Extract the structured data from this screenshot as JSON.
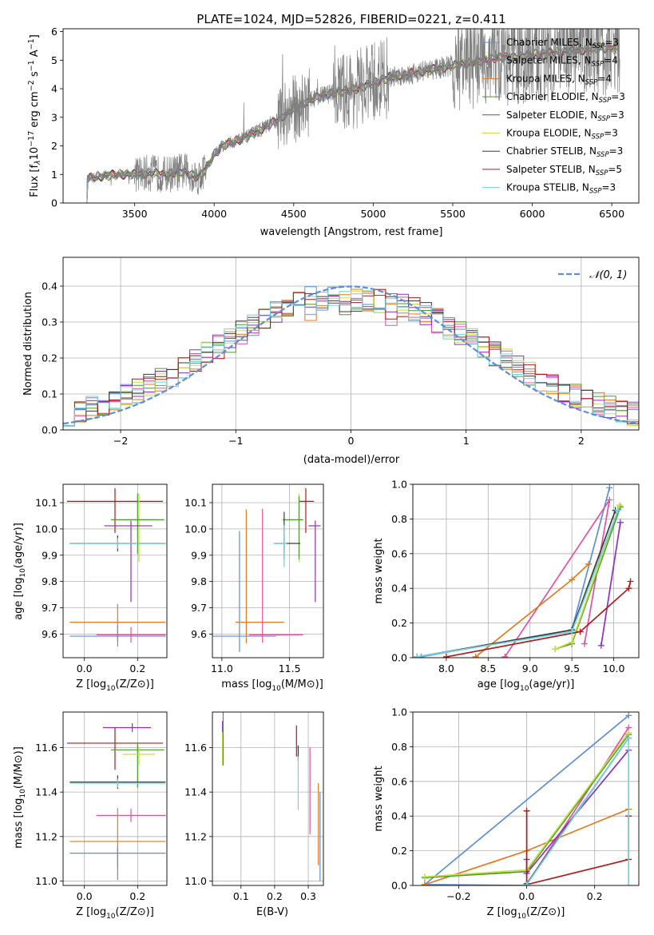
{
  "figure": {
    "title": "PLATE=1024, MJD=52826, FIBERID=0221, z=0.411"
  },
  "colors": {
    "chabrier_miles": "#5b8fd9",
    "salpeter_miles": "#e84fa0",
    "kroupa_miles": "#e37a1f",
    "chabrier_elodie": "#4a9a2a",
    "salpeter_elodie": "#8f2fbf",
    "kroupa_elodie": "#c7e03a",
    "chabrier_stelib": "#3a3a3a",
    "salpeter_stelib": "#b01a1a",
    "kroupa_stelib": "#6fd3e0",
    "data": "#808080",
    "normal": "#5b8fd9",
    "grid": "#b0b0b0"
  },
  "chart_data": [
    {
      "id": "spectrum",
      "type": "line",
      "xlabel": "wavelength [Angstrom, rest frame]",
      "ylabel": "Flux [f",
      "xlim": [
        3050,
        6670
      ],
      "ylim": [
        0,
        6.1
      ],
      "xticks": [
        "3500",
        "4000",
        "4500",
        "5000",
        "5500",
        "6000",
        "6500"
      ],
      "yticks": [
        "0",
        "1",
        "2",
        "3",
        "4",
        "5",
        "6"
      ],
      "grid": false,
      "legend_position": "right",
      "legend": [
        {
          "key": "chabrier_miles",
          "label": "Chabrier MILES, N",
          "n": "3"
        },
        {
          "key": "salpeter_miles",
          "label": "Salpeter MILES, N",
          "n": "4"
        },
        {
          "key": "kroupa_miles",
          "label": "Kroupa MILES, N",
          "n": "4"
        },
        {
          "key": "chabrier_elodie",
          "label": "Chabrier ELODIE, N",
          "n": "3"
        },
        {
          "key": "salpeter_elodie",
          "label": "Salpeter ELODIE, N",
          "n": "3"
        },
        {
          "key": "kroupa_elodie",
          "label": "Kroupa ELODIE, N",
          "n": "3"
        },
        {
          "key": "chabrier_stelib",
          "label": "Chabrier STELIB, N",
          "n": "3"
        },
        {
          "key": "salpeter_stelib",
          "label": "Salpeter STELIB, N",
          "n": "5"
        },
        {
          "key": "kroupa_stelib",
          "label": "Kroupa STELIB, N",
          "n": "3"
        }
      ],
      "continuum": {
        "x": [
          3200,
          3250,
          3300,
          3400,
          3500,
          3600,
          3700,
          3800,
          3900,
          3950,
          4000,
          4050,
          4100,
          4200,
          4300,
          4400,
          4500,
          4600,
          4700,
          4800,
          4900,
          5000,
          5100,
          5200,
          5300,
          5400,
          5500,
          5600,
          5700,
          5800,
          5900,
          6000,
          6100,
          6200,
          6300,
          6400,
          6500
        ],
        "y": [
          0.85,
          0.9,
          0.95,
          1.0,
          1.0,
          1.05,
          1.0,
          1.1,
          0.9,
          1.2,
          1.7,
          2.0,
          2.1,
          2.3,
          2.6,
          2.9,
          3.3,
          3.6,
          3.8,
          3.9,
          4.0,
          4.2,
          4.4,
          4.5,
          4.6,
          4.7,
          4.8,
          4.9,
          5.0,
          5.1,
          5.1,
          5.2,
          5.25,
          5.3,
          5.35,
          5.4,
          5.45
        ]
      },
      "data_noise_regions": [
        [
          3500,
          3950
        ],
        [
          4400,
          4600
        ],
        [
          4750,
          5100
        ],
        [
          5500,
          6550
        ]
      ]
    },
    {
      "id": "residuals",
      "type": "histogram",
      "xlabel": "(data-model)/error",
      "ylabel": "Normed distribution",
      "xlim": [
        -2.5,
        2.5
      ],
      "ylim": [
        0,
        0.48
      ],
      "xticks": [
        "−2",
        "−1",
        "0",
        "1",
        "2"
      ],
      "yticks": [
        "0.0",
        "0.1",
        "0.2",
        "0.3",
        "0.4"
      ],
      "grid": true,
      "legend_position": "top-right",
      "legend_label": "𝒩(0, 1)",
      "bin_width": 0.1,
      "bin_start": -2.5
    },
    {
      "id": "age_vs_Z",
      "type": "errorbar",
      "xlabel": "Z [log",
      "ylabel": "age  [log",
      "xlim": [
        -0.08,
        0.31
      ],
      "ylim": [
        9.51,
        10.17
      ],
      "xticks": [
        "0.0",
        "0.2"
      ],
      "yticks": [
        "9.6",
        "9.7",
        "9.8",
        "9.9",
        "10.0",
        "10.1"
      ],
      "grid": true,
      "points": [
        {
          "key": "salpeter_stelib",
          "x": 0.115,
          "xe": [
            0.18,
            0.18
          ],
          "y": 10.105,
          "ye": [
            0.12,
            0.05
          ]
        },
        {
          "key": "kroupa_elodie",
          "x": 0.205,
          "xe": [
            0.06,
            0.06
          ],
          "y": 10.035,
          "ye": [
            0.16,
            0.1
          ]
        },
        {
          "key": "chabrier_elodie",
          "x": 0.2,
          "xe": [
            0.1,
            0.1
          ],
          "y": 10.035,
          "ye": [
            0.13,
            0.1
          ]
        },
        {
          "key": "salpeter_elodie",
          "x": 0.175,
          "xe": [
            0.1,
            0.08
          ],
          "y": 10.012,
          "ye": [
            0.29,
            0.02
          ]
        },
        {
          "key": "chabrier_stelib",
          "x": 0.125,
          "xe": [
            0.18,
            0.18
          ],
          "y": 9.945,
          "ye": [
            0.03,
            0.03
          ]
        },
        {
          "key": "kroupa_stelib",
          "x": 0.125,
          "xe": [
            0.18,
            0.18
          ],
          "y": 9.945,
          "ye": [
            0.02,
            0.02
          ]
        },
        {
          "key": "kroupa_miles",
          "x": 0.125,
          "xe": [
            0.18,
            0.18
          ],
          "y": 9.645,
          "ye": [
            0.07,
            0.07
          ]
        },
        {
          "key": "chabrier_miles",
          "x": 0.125,
          "xe": [
            0.18,
            0.18
          ],
          "y": 9.592,
          "ye": [
            0.04,
            0.04
          ]
        },
        {
          "key": "salpeter_miles",
          "x": 0.175,
          "xe": [
            0.13,
            0.13
          ],
          "y": 9.597,
          "ye": [
            0.03,
            0.03
          ]
        }
      ]
    },
    {
      "id": "age_vs_mass",
      "type": "errorbar",
      "xlabel": "mass [log",
      "ylabel": "",
      "xlim": [
        10.93,
        11.75
      ],
      "ylim": [
        9.51,
        10.17
      ],
      "xticks": [
        "11.0",
        "11.5"
      ],
      "yticks": [
        "9.6",
        "9.7",
        "9.8",
        "9.9",
        "10.0",
        "10.1"
      ],
      "grid": true,
      "points": [
        {
          "key": "salpeter_stelib",
          "x": 11.62,
          "xe": [
            0.05,
            0.06
          ],
          "y": 10.105,
          "ye": [
            0.12,
            0.05
          ]
        },
        {
          "key": "kroupa_elodie",
          "x": 11.57,
          "xe": [
            0.03,
            0.03
          ],
          "y": 10.035,
          "ye": [
            0.16,
            0.1
          ]
        },
        {
          "key": "chabrier_elodie",
          "x": 11.57,
          "xe": [
            0.12,
            0.03
          ],
          "y": 10.035,
          "ye": [
            0.15,
            0.09
          ]
        },
        {
          "key": "salpeter_elodie",
          "x": 11.69,
          "xe": [
            0.05,
            0.04
          ],
          "y": 10.012,
          "ye": [
            0.29,
            0.02
          ]
        },
        {
          "key": "chabrier_stelib",
          "x": 11.46,
          "xe": [
            0.07,
            0.12
          ],
          "y": 9.945,
          "ye": [
            0.06,
            0.12
          ]
        },
        {
          "key": "kroupa_stelib",
          "x": 11.46,
          "xe": [
            0.08,
            0.02
          ],
          "y": 9.945,
          "ye": [
            0.09,
            0.07
          ]
        },
        {
          "key": "kroupa_miles",
          "x": 11.18,
          "xe": [
            0.08,
            0.28
          ],
          "y": 9.645,
          "ye": [
            0.08,
            0.43
          ]
        },
        {
          "key": "chabrier_miles",
          "x": 11.13,
          "xe": [
            0.23,
            0.27
          ],
          "y": 9.592,
          "ye": [
            0.06,
            0.4
          ]
        },
        {
          "key": "salpeter_miles",
          "x": 11.3,
          "xe": [
            0.1,
            0.3
          ],
          "y": 9.597,
          "ye": [
            0.03,
            0.48
          ]
        }
      ]
    },
    {
      "id": "mass_weight_vs_age",
      "type": "line",
      "xlabel": "age  [log",
      "ylabel": "mass weight",
      "xlim": [
        7.6,
        10.3
      ],
      "ylim": [
        0,
        1
      ],
      "xticks": [
        "8.0",
        "8.5",
        "9.0",
        "9.5",
        "10.0"
      ],
      "yticks": [
        "0.0",
        "0.2",
        "0.4",
        "0.6",
        "0.8",
        "1.0"
      ],
      "grid": true,
      "series": [
        {
          "key": "chabrier_miles",
          "x": [
            7.7,
            9.5,
            9.95
          ],
          "y": [
            0.005,
            0.16,
            0.98
          ]
        },
        {
          "key": "salpeter_miles",
          "x": [
            8.7,
            9.95,
            9.65
          ],
          "y": [
            0.005,
            0.91,
            0.08
          ]
        },
        {
          "key": "kroupa_miles",
          "x": [
            8.35,
            9.5,
            9.7
          ],
          "y": [
            0.005,
            0.45,
            0.54
          ]
        },
        {
          "key": "chabrier_elodie",
          "x": [
            9.3,
            9.5,
            10.08
          ],
          "y": [
            0.05,
            0.08,
            0.87
          ]
        },
        {
          "key": "salpeter_elodie",
          "x": [
            9.85,
            10.08
          ],
          "y": [
            0.07,
            0.78
          ]
        },
        {
          "key": "kroupa_elodie",
          "x": [
            9.3,
            9.5,
            10.07
          ],
          "y": [
            0.05,
            0.09,
            0.88
          ]
        },
        {
          "key": "chabrier_stelib",
          "x": [
            7.65,
            9.5,
            10.02
          ],
          "y": [
            0.005,
            0.16,
            0.85
          ]
        },
        {
          "key": "salpeter_stelib",
          "x": [
            8.0,
            9.6,
            10.18,
            10.2
          ],
          "y": [
            0.005,
            0.15,
            0.4,
            0.44
          ]
        },
        {
          "key": "kroupa_stelib",
          "x": [
            7.65,
            9.5,
            10.05
          ],
          "y": [
            0.005,
            0.15,
            0.85
          ]
        }
      ]
    },
    {
      "id": "mass_vs_Z",
      "type": "errorbar",
      "xlabel": "Z [log",
      "ylabel": "mass [log",
      "xlim": [
        -0.08,
        0.31
      ],
      "ylim": [
        10.98,
        11.76
      ],
      "xticks": [
        "0.0",
        "0.2"
      ],
      "yticks": [
        "11.0",
        "11.2",
        "11.4",
        "11.6"
      ],
      "grid": true,
      "points": [
        {
          "key": "salpeter_elodie",
          "x": 0.18,
          "xe": [
            0.11,
            0.07
          ],
          "y": 11.69,
          "ye": [
            0.02,
            0.02
          ]
        },
        {
          "key": "salpeter_stelib",
          "x": 0.115,
          "xe": [
            0.18,
            0.18
          ],
          "y": 11.62,
          "ye": [
            0.12,
            0.07
          ]
        },
        {
          "key": "chabrier_elodie",
          "x": 0.2,
          "xe": [
            0.1,
            0.1
          ],
          "y": 11.59,
          "ye": [
            0.17,
            0.03
          ]
        },
        {
          "key": "kroupa_elodie",
          "x": 0.205,
          "xe": [
            0.06,
            0.06
          ],
          "y": 11.57,
          "ye": [
            0.05,
            0.03
          ]
        },
        {
          "key": "chabrier_stelib",
          "x": 0.125,
          "xe": [
            0.18,
            0.18
          ],
          "y": 11.445,
          "ye": [
            0.03,
            0.03
          ]
        },
        {
          "key": "kroupa_stelib",
          "x": 0.125,
          "xe": [
            0.18,
            0.18
          ],
          "y": 11.44,
          "ye": [
            0.02,
            0.02
          ]
        },
        {
          "key": "salpeter_miles",
          "x": 0.175,
          "xe": [
            0.13,
            0.13
          ],
          "y": 11.295,
          "ye": [
            0.03,
            0.03
          ]
        },
        {
          "key": "kroupa_miles",
          "x": 0.125,
          "xe": [
            0.18,
            0.18
          ],
          "y": 11.178,
          "ye": [
            0.12,
            0.15
          ]
        },
        {
          "key": "chabrier_miles",
          "x": 0.125,
          "xe": [
            0.18,
            0.18
          ],
          "y": 11.125,
          "ye": [
            0.12,
            0.03
          ]
        }
      ]
    },
    {
      "id": "mass_vs_ebv",
      "type": "errorbar",
      "xlabel": "E(B-V)",
      "ylabel": "",
      "xlim": [
        0.015,
        0.345
      ],
      "ylim": [
        10.98,
        11.76
      ],
      "xticks": [
        "0.1",
        "0.2",
        "0.3"
      ],
      "yticks": [
        "11.0",
        "11.2",
        "11.4",
        "11.6"
      ],
      "grid": true,
      "points": [
        {
          "key": "salpeter_elodie",
          "x": 0.045,
          "xe": [
            0,
            0
          ],
          "y": 11.69,
          "ye": [
            0.03,
            0.03
          ]
        },
        {
          "key": "kroupa_elodie",
          "x": 0.045,
          "xe": [
            0,
            0
          ],
          "y": 11.57,
          "ye": [
            0.05,
            0.1
          ]
        },
        {
          "key": "chabrier_elodie",
          "x": 0.047,
          "xe": [
            0,
            0
          ],
          "y": 11.59,
          "ye": [
            0.07,
            0.17
          ]
        },
        {
          "key": "salpeter_stelib",
          "x": 0.265,
          "xe": [
            0,
            0
          ],
          "y": 11.63,
          "ye": [
            0.07,
            0.07
          ]
        },
        {
          "key": "chabrier_stelib",
          "x": 0.27,
          "xe": [
            0,
            0
          ],
          "y": 11.58,
          "ye": [
            0.04,
            0.03
          ]
        },
        {
          "key": "kroupa_stelib",
          "x": 0.27,
          "xe": [
            0,
            0
          ],
          "y": 11.44,
          "ye": [
            0.12,
            0.12
          ]
        },
        {
          "key": "salpeter_miles",
          "x": 0.305,
          "xe": [
            0,
            0
          ],
          "y": 11.39,
          "ye": [
            0.18,
            0.21
          ]
        },
        {
          "key": "kroupa_miles",
          "x": 0.33,
          "xe": [
            0,
            0
          ],
          "y": 11.25,
          "ye": [
            0.18,
            0.19
          ]
        },
        {
          "key": "chabrier_miles",
          "x": 0.335,
          "xe": [
            0,
            0
          ],
          "y": 11.25,
          "ye": [
            0.25,
            0.15
          ]
        }
      ]
    },
    {
      "id": "mass_weight_vs_Z",
      "type": "line",
      "xlabel": "Z [log",
      "ylabel": "mass weight",
      "xlim": [
        -0.335,
        0.33
      ],
      "ylim": [
        0,
        1
      ],
      "xticks": [
        "−0.2",
        "0.0",
        "0.2"
      ],
      "yticks": [
        "0.0",
        "0.2",
        "0.4",
        "0.6",
        "0.8",
        "1.0"
      ],
      "grid": true,
      "series": [
        {
          "key": "chabrier_miles",
          "x": [
            0.0,
            -0.3,
            0.3
          ],
          "y": [
            0.0,
            0.005,
            0.98
          ]
        },
        {
          "key": "salpeter_miles",
          "x": [
            0.0,
            0.3
          ],
          "y": [
            0.005,
            0.91
          ]
        },
        {
          "key": "kroupa_miles",
          "x": [
            -0.3,
            0.0,
            0.3
          ],
          "y": [
            0.005,
            0.2,
            0.44
          ]
        },
        {
          "key": "chabrier_elodie",
          "x": [
            -0.3,
            0.0,
            0.3
          ],
          "y": [
            0.045,
            0.08,
            0.87
          ]
        },
        {
          "key": "salpeter_elodie",
          "x": [
            0.0,
            0.0,
            0.3
          ],
          "y": [
            0.15,
            0.07,
            0.78
          ]
        },
        {
          "key": "kroupa_elodie",
          "x": [
            -0.3,
            0.0,
            0.3
          ],
          "y": [
            0.05,
            0.09,
            0.88
          ]
        },
        {
          "key": "chabrier_stelib",
          "x": [
            0.0,
            0.3
          ],
          "y": [
            0.01,
            0.85
          ]
        },
        {
          "key": "salpeter_stelib",
          "x": [
            0.0,
            0.0,
            0.3,
            0.3
          ],
          "y": [
            0.43,
            0.005,
            0.15,
            0.4
          ]
        },
        {
          "key": "kroupa_stelib",
          "x": [
            0.0,
            0.3,
            0.3
          ],
          "y": [
            0.005,
            0.85,
            0.0
          ]
        }
      ]
    }
  ]
}
